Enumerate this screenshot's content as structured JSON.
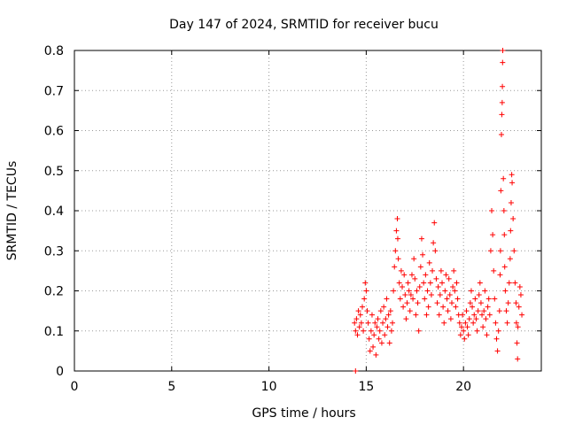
{
  "chart_data": {
    "type": "scatter",
    "title": "Day 147 of 2024, SRMTID for receiver bucu",
    "xlabel": "GPS time / hours",
    "ylabel": "SRMTID / TECUs",
    "xlim": [
      0,
      24
    ],
    "ylim": [
      0,
      0.8
    ],
    "xticks": [
      0,
      5,
      10,
      15,
      20
    ],
    "yticks": [
      0,
      0.1,
      0.2,
      0.3,
      0.4,
      0.5,
      0.6,
      0.7,
      0.8
    ],
    "xtick_labels": [
      "0",
      "5",
      "10",
      "15",
      "20"
    ],
    "ytick_labels": [
      "0",
      "0.1",
      "0.2",
      "0.3",
      "0.4",
      "0.5",
      "0.6",
      "0.7",
      "0.8"
    ],
    "grid": true,
    "marker": "+",
    "color": "#ff0000",
    "series": [
      {
        "name": "bucu",
        "points": [
          [
            14.45,
            0.0
          ],
          [
            14.4,
            0.12
          ],
          [
            14.45,
            0.1
          ],
          [
            14.5,
            0.13
          ],
          [
            14.55,
            0.09
          ],
          [
            14.6,
            0.15
          ],
          [
            14.65,
            0.11
          ],
          [
            14.7,
            0.14
          ],
          [
            14.75,
            0.12
          ],
          [
            14.8,
            0.16
          ],
          [
            14.85,
            0.1
          ],
          [
            14.9,
            0.18
          ],
          [
            14.95,
            0.22
          ],
          [
            15.0,
            0.2
          ],
          [
            15.05,
            0.15
          ],
          [
            15.1,
            0.12
          ],
          [
            15.15,
            0.08
          ],
          [
            15.2,
            0.05
          ],
          [
            15.25,
            0.1
          ],
          [
            15.3,
            0.14
          ],
          [
            15.35,
            0.06
          ],
          [
            15.4,
            0.09
          ],
          [
            15.45,
            0.12
          ],
          [
            15.5,
            0.04
          ],
          [
            15.55,
            0.11
          ],
          [
            15.6,
            0.13
          ],
          [
            15.65,
            0.08
          ],
          [
            15.7,
            0.1
          ],
          [
            15.75,
            0.15
          ],
          [
            15.8,
            0.07
          ],
          [
            15.85,
            0.12
          ],
          [
            15.9,
            0.16
          ],
          [
            15.95,
            0.09
          ],
          [
            16.0,
            0.13
          ],
          [
            16.05,
            0.18
          ],
          [
            16.1,
            0.11
          ],
          [
            16.15,
            0.14
          ],
          [
            16.2,
            0.07
          ],
          [
            16.25,
            0.15
          ],
          [
            16.3,
            0.1
          ],
          [
            16.35,
            0.12
          ],
          [
            16.4,
            0.2
          ],
          [
            16.45,
            0.26
          ],
          [
            16.5,
            0.3
          ],
          [
            16.55,
            0.35
          ],
          [
            16.6,
            0.38
          ],
          [
            16.62,
            0.33
          ],
          [
            16.65,
            0.28
          ],
          [
            16.7,
            0.22
          ],
          [
            16.75,
            0.18
          ],
          [
            16.8,
            0.25
          ],
          [
            16.85,
            0.21
          ],
          [
            16.9,
            0.16
          ],
          [
            16.95,
            0.24
          ],
          [
            17.0,
            0.19
          ],
          [
            17.05,
            0.13
          ],
          [
            17.1,
            0.17
          ],
          [
            17.15,
            0.22
          ],
          [
            17.2,
            0.2
          ],
          [
            17.25,
            0.15
          ],
          [
            17.3,
            0.19
          ],
          [
            17.35,
            0.24
          ],
          [
            17.4,
            0.18
          ],
          [
            17.45,
            0.28
          ],
          [
            17.5,
            0.23
          ],
          [
            17.55,
            0.14
          ],
          [
            17.6,
            0.2
          ],
          [
            17.65,
            0.17
          ],
          [
            17.7,
            0.1
          ],
          [
            17.75,
            0.21
          ],
          [
            17.8,
            0.26
          ],
          [
            17.85,
            0.33
          ],
          [
            17.9,
            0.29
          ],
          [
            17.95,
            0.22
          ],
          [
            18.0,
            0.18
          ],
          [
            18.05,
            0.24
          ],
          [
            18.1,
            0.14
          ],
          [
            18.15,
            0.2
          ],
          [
            18.2,
            0.16
          ],
          [
            18.25,
            0.27
          ],
          [
            18.3,
            0.22
          ],
          [
            18.35,
            0.19
          ],
          [
            18.4,
            0.25
          ],
          [
            18.45,
            0.32
          ],
          [
            18.5,
            0.37
          ],
          [
            18.55,
            0.3
          ],
          [
            18.6,
            0.23
          ],
          [
            18.65,
            0.17
          ],
          [
            18.7,
            0.21
          ],
          [
            18.75,
            0.14
          ],
          [
            18.8,
            0.19
          ],
          [
            18.85,
            0.25
          ],
          [
            18.9,
            0.22
          ],
          [
            18.95,
            0.16
          ],
          [
            19.0,
            0.12
          ],
          [
            19.05,
            0.2
          ],
          [
            19.1,
            0.24
          ],
          [
            19.15,
            0.18
          ],
          [
            19.2,
            0.15
          ],
          [
            19.25,
            0.23
          ],
          [
            19.3,
            0.19
          ],
          [
            19.35,
            0.13
          ],
          [
            19.4,
            0.17
          ],
          [
            19.45,
            0.21
          ],
          [
            19.5,
            0.25
          ],
          [
            19.55,
            0.2
          ],
          [
            19.6,
            0.16
          ],
          [
            19.65,
            0.22
          ],
          [
            19.7,
            0.18
          ],
          [
            19.75,
            0.14
          ],
          [
            19.8,
            0.12
          ],
          [
            19.85,
            0.09
          ],
          [
            19.9,
            0.11
          ],
          [
            19.95,
            0.14
          ],
          [
            20.0,
            0.1
          ],
          [
            20.05,
            0.08
          ],
          [
            20.1,
            0.12
          ],
          [
            20.15,
            0.15
          ],
          [
            20.2,
            0.11
          ],
          [
            20.25,
            0.09
          ],
          [
            20.3,
            0.13
          ],
          [
            20.35,
            0.17
          ],
          [
            20.4,
            0.2
          ],
          [
            20.45,
            0.16
          ],
          [
            20.5,
            0.12
          ],
          [
            20.55,
            0.14
          ],
          [
            20.6,
            0.18
          ],
          [
            20.65,
            0.13
          ],
          [
            20.7,
            0.1
          ],
          [
            20.75,
            0.15
          ],
          [
            20.8,
            0.19
          ],
          [
            20.85,
            0.22
          ],
          [
            20.9,
            0.17
          ],
          [
            20.95,
            0.14
          ],
          [
            21.0,
            0.11
          ],
          [
            21.05,
            0.15
          ],
          [
            21.1,
            0.2
          ],
          [
            21.15,
            0.13
          ],
          [
            21.2,
            0.09
          ],
          [
            21.25,
            0.16
          ],
          [
            21.3,
            0.18
          ],
          [
            21.35,
            0.14
          ],
          [
            21.4,
            0.3
          ],
          [
            21.45,
            0.4
          ],
          [
            21.5,
            0.34
          ],
          [
            21.55,
            0.25
          ],
          [
            21.6,
            0.18
          ],
          [
            21.65,
            0.12
          ],
          [
            21.7,
            0.08
          ],
          [
            21.75,
            0.05
          ],
          [
            21.8,
            0.1
          ],
          [
            21.85,
            0.15
          ],
          [
            21.88,
            0.24
          ],
          [
            21.9,
            0.3
          ],
          [
            21.92,
            0.45
          ],
          [
            21.95,
            0.59
          ],
          [
            21.97,
            0.64
          ],
          [
            21.99,
            0.67
          ],
          [
            22.0,
            0.71
          ],
          [
            22.01,
            0.77
          ],
          [
            22.02,
            0.8
          ],
          [
            22.05,
            0.48
          ],
          [
            22.08,
            0.4
          ],
          [
            22.1,
            0.34
          ],
          [
            22.12,
            0.26
          ],
          [
            22.15,
            0.2
          ],
          [
            22.2,
            0.15
          ],
          [
            22.25,
            0.12
          ],
          [
            22.3,
            0.17
          ],
          [
            22.35,
            0.22
          ],
          [
            22.4,
            0.28
          ],
          [
            22.42,
            0.35
          ],
          [
            22.45,
            0.42
          ],
          [
            22.48,
            0.49
          ],
          [
            22.5,
            0.47
          ],
          [
            22.55,
            0.38
          ],
          [
            22.6,
            0.3
          ],
          [
            22.65,
            0.22
          ],
          [
            22.7,
            0.17
          ],
          [
            22.72,
            0.12
          ],
          [
            22.75,
            0.07
          ],
          [
            22.78,
            0.03
          ],
          [
            22.8,
            0.11
          ],
          [
            22.85,
            0.16
          ],
          [
            22.9,
            0.21
          ],
          [
            22.95,
            0.19
          ],
          [
            23.0,
            0.14
          ]
        ]
      }
    ]
  }
}
